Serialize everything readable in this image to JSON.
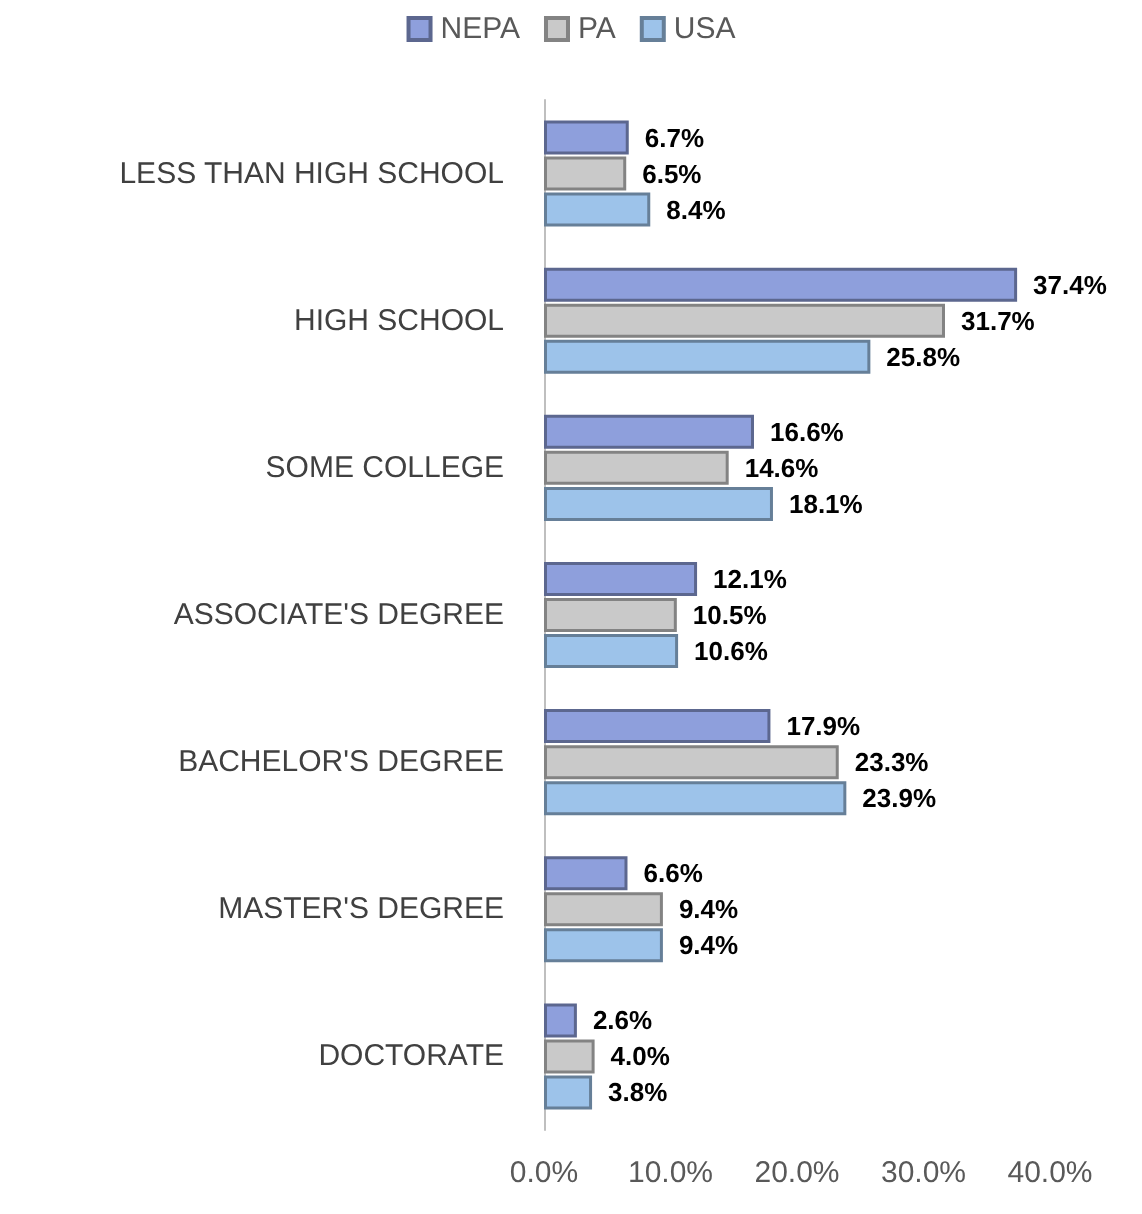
{
  "chart_data": {
    "type": "bar",
    "orientation": "horizontal",
    "legend": "top",
    "categories": [
      "LESS THAN HIGH SCHOOL",
      "HIGH SCHOOL",
      "SOME COLLEGE",
      "ASSOCIATE'S DEGREE",
      "BACHELOR'S DEGREE",
      "MASTER'S DEGREE",
      "DOCTORATE"
    ],
    "series": [
      {
        "name": "NEPA",
        "color": "#8e9fdc",
        "values": [
          6.7,
          37.4,
          16.6,
          12.1,
          17.9,
          6.6,
          2.6
        ],
        "value_labels": [
          "6.7%",
          "37.4%",
          "16.6%",
          "12.1%",
          "17.9%",
          "6.6%",
          "2.6%"
        ]
      },
      {
        "name": "PA",
        "color": "#c9c9c9",
        "values": [
          6.5,
          31.7,
          14.6,
          10.5,
          23.3,
          9.4,
          4.0
        ],
        "value_labels": [
          "6.5%",
          "31.7%",
          "14.6%",
          "10.5%",
          "23.3%",
          "9.4%",
          "4.0%"
        ]
      },
      {
        "name": "USA",
        "color": "#9dc3ea",
        "values": [
          8.4,
          25.8,
          18.1,
          10.6,
          23.9,
          9.4,
          3.8
        ],
        "value_labels": [
          "8.4%",
          "25.8%",
          "18.1%",
          "10.6%",
          "23.9%",
          "9.4%",
          "3.8%"
        ]
      }
    ],
    "xlim": [
      0,
      40
    ],
    "xticks": [
      {
        "value": 0,
        "label": "0.0%"
      },
      {
        "value": 10,
        "label": "10.0%"
      },
      {
        "value": 20,
        "label": "20.0%"
      },
      {
        "value": 30,
        "label": "30.0%"
      },
      {
        "value": 40,
        "label": "40.0%"
      }
    ],
    "grid": false
  }
}
